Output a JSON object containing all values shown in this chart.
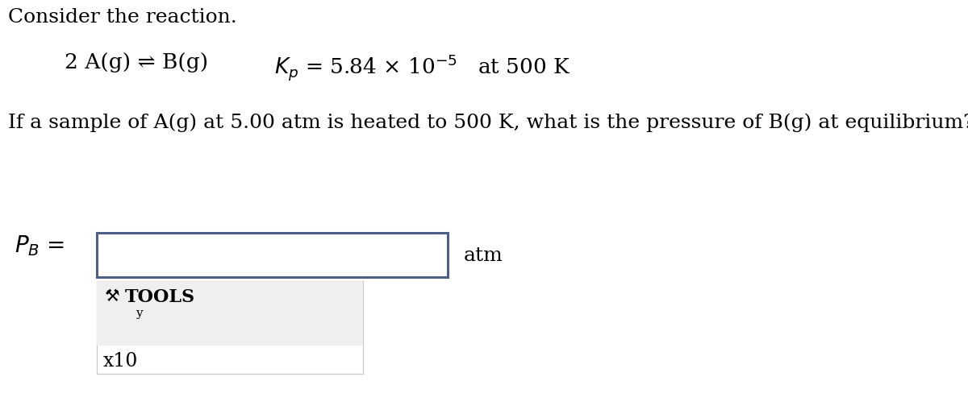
{
  "title_text": "Consider the reaction.",
  "reaction_text": "2 A(g) ⇌ B(g)",
  "kp_text": "$K_p$ = 5.84 × 10$^{-5}$   at 500 K",
  "question_text": "If a sample of A(g) at 5.00 atm is heated to 500 K, what is the pressure of B(g) at equilibrium?",
  "pb_label": "$P_B$ =",
  "atm_label": "atm",
  "tools_label": "TOOLS",
  "x10_label": "x10",
  "bg_color": "#ffffff",
  "box_edge_color": "#4d5f87",
  "tools_bg": "#efefef",
  "tools_border": "#cccccc",
  "text_color": "#000000",
  "font_size_title": 18,
  "font_size_reaction": 19,
  "font_size_question": 18,
  "font_size_pb": 20,
  "font_size_atm": 18,
  "font_size_tools": 16,
  "font_size_x10": 17
}
